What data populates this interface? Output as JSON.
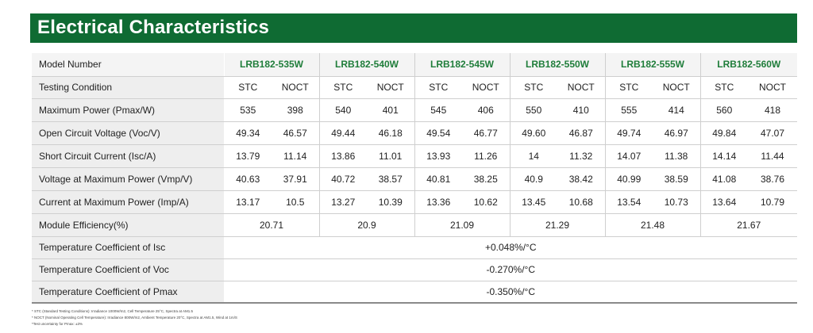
{
  "title": "Electrical Characteristics",
  "model_label": "Model Number",
  "models": [
    "LRB182-535W",
    "LRB182-540W",
    "LRB182-545W",
    "LRB182-550W",
    "LRB182-555W",
    "LRB182-560W"
  ],
  "testing_condition_label": "Testing Condition",
  "conditions": [
    "STC",
    "NOCT"
  ],
  "rows": [
    {
      "label": "Maximum Power (Pmax/W)",
      "values": [
        "535",
        "398",
        "540",
        "401",
        "545",
        "406",
        "550",
        "410",
        "555",
        "414",
        "560",
        "418"
      ]
    },
    {
      "label": "Open Circuit Voltage (Voc/V)",
      "values": [
        "49.34",
        "46.57",
        "49.44",
        "46.18",
        "49.54",
        "46.77",
        "49.60",
        "46.87",
        "49.74",
        "46.97",
        "49.84",
        "47.07"
      ]
    },
    {
      "label": "Short Circuit Current (Isc/A)",
      "values": [
        "13.79",
        "11.14",
        "13.86",
        "11.01",
        "13.93",
        "11.26",
        "14",
        "11.32",
        "14.07",
        "11.38",
        "14.14",
        "11.44"
      ]
    },
    {
      "label": "Voltage at Maximum Power (Vmp/V)",
      "values": [
        "40.63",
        "37.91",
        "40.72",
        "38.57",
        "40.81",
        "38.25",
        "40.9",
        "38.42",
        "40.99",
        "38.59",
        "41.08",
        "38.76"
      ]
    },
    {
      "label": "Current at Maximum Power (Imp/A)",
      "values": [
        "13.17",
        "10.5",
        "13.27",
        "10.39",
        "13.36",
        "10.62",
        "13.45",
        "10.68",
        "13.54",
        "10.73",
        "13.64",
        "10.79"
      ]
    }
  ],
  "efficiency": {
    "label": "Module Efficiency(%)",
    "values": [
      "20.71",
      "20.9",
      "21.09",
      "21.29",
      "21.48",
      "21.67"
    ]
  },
  "coefficients": [
    {
      "label": "Temperature Coefficient of Isc",
      "value": "+0.048%/°C"
    },
    {
      "label": "Temperature Coefficient of Voc",
      "value": "-0.270%/°C"
    },
    {
      "label": "Temperature Coefficient of Pmax",
      "value": "-0.350%/°C"
    }
  ],
  "footnotes": [
    "* STC (Standard Testing Conditions): Irradiance 1000W/m2, Cell Temperature 25°C, Spectra at AM1.5",
    "* NOCT (Nominal Operating Cell Temperature): Irradiance 800W/m2, Ambient Temperature 20°C, Spectra at AM1.5, Wind at 1m/S",
    "*Test uncertainty for Pmax: ±3%"
  ],
  "colors": {
    "header_bg": "#0f6b33",
    "model_text": "#1f7d3a",
    "label_bg": "#eeeeee"
  }
}
